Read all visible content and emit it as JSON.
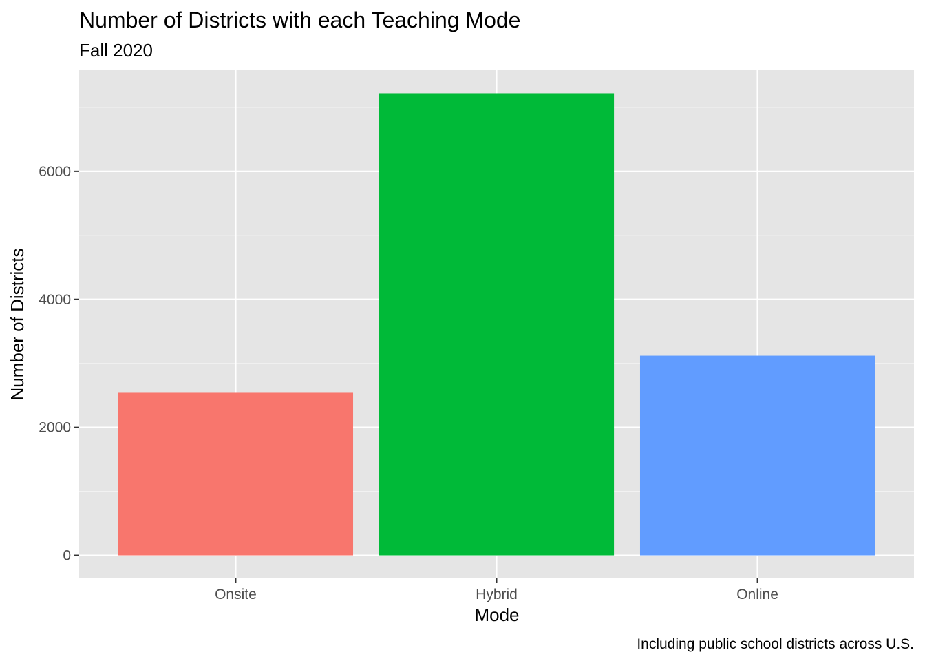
{
  "chart_data": {
    "type": "bar",
    "title": "Number of Districts with each Teaching Mode",
    "subtitle": "Fall 2020",
    "xlabel": "Mode",
    "ylabel": "Number of Districts",
    "caption": "Including public school districts across U.S.",
    "categories": [
      "Onsite",
      "Hybrid",
      "Online"
    ],
    "values": [
      2540,
      7220,
      3120
    ],
    "colors": [
      "#F8766D",
      "#00BA38",
      "#619CFF"
    ],
    "ylim": [
      -360,
      7580
    ],
    "yticks": [
      0,
      2000,
      4000,
      6000
    ],
    "ytick_labels": [
      "0",
      "2000",
      "4000",
      "6000"
    ],
    "grid": true,
    "legend": "none"
  }
}
